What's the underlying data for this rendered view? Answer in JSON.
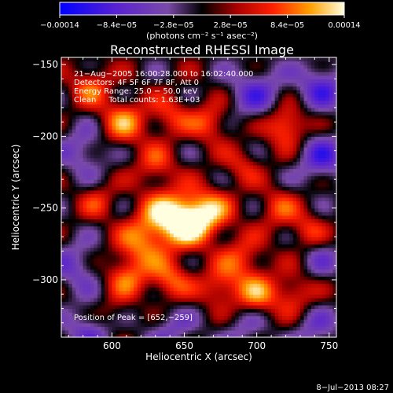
{
  "chart_data": {
    "type": "heatmap",
    "title": "Reconstructed RHESSI Image",
    "xlabel": "Heliocentric X (arcsec)",
    "ylabel": "Heliocentric Y (arcsec)",
    "xlim": [
      565,
      755
    ],
    "ylim": [
      -340,
      -145
    ],
    "x_ticks": [
      600,
      650,
      700,
      750
    ],
    "y_ticks": [
      -150,
      -200,
      -250,
      -300
    ],
    "x_tick_labels": [
      "600",
      "650",
      "700",
      "750"
    ],
    "y_tick_labels": [
      "−150",
      "−200",
      "−250",
      "−300"
    ],
    "colorbar": {
      "range": [
        -0.00014,
        0.00014
      ],
      "tick_values": [
        -0.00014,
        -8.4e-05,
        -2.8e-05,
        2.8e-05,
        8.4e-05,
        0.00014
      ],
      "tick_labels": [
        "−0.00014",
        "−8.4e−05",
        "−2.8e−05",
        "2.8e−05",
        "8.4e−05",
        "0.00014"
      ],
      "units_label": "(photons cm⁻² s⁻¹ asec⁻²)"
    },
    "annotations": [
      "21−Aug−2005 16:00:28.000 to 16:02:40.000",
      "Detectors: 4F 5F 6F 7F 8F, Att 0",
      "Energy Range: 25.0 − 50.0 keV",
      "Clean     Total counts: 1.63E+03"
    ],
    "peak_label": "Position of Peak = [652,−259]",
    "peak": [
      652,
      -259
    ],
    "footer_date": "8−Jul−2013 08:27",
    "blobs": [
      {
        "x": 652,
        "y": -259,
        "value": 0.00014,
        "sigma": 12
      },
      {
        "x": 635,
        "y": -255,
        "value": 9.5e-05,
        "sigma": 12
      },
      {
        "x": 668,
        "y": -252,
        "value": 8.5e-05,
        "sigma": 11
      },
      {
        "x": 620,
        "y": -275,
        "value": 8e-05,
        "sigma": 12
      },
      {
        "x": 640,
        "y": -300,
        "value": 8e-05,
        "sigma": 10
      },
      {
        "x": 610,
        "y": -298,
        "value": 7.5e-05,
        "sigma": 10
      },
      {
        "x": 690,
        "y": -285,
        "value": 6.5e-05,
        "sigma": 11
      },
      {
        "x": 700,
        "y": -310,
        "value": 8.5e-05,
        "sigma": 10
      },
      {
        "x": 725,
        "y": -310,
        "value": 6.5e-05,
        "sigma": 10
      },
      {
        "x": 675,
        "y": -305,
        "value": 7e-05,
        "sigma": 10
      },
      {
        "x": 715,
        "y": -250,
        "value": 6e-05,
        "sigma": 10
      },
      {
        "x": 585,
        "y": -165,
        "value": 7e-05,
        "sigma": 10
      },
      {
        "x": 608,
        "y": -190,
        "value": 9e-05,
        "sigma": 11
      },
      {
        "x": 640,
        "y": -185,
        "value": 6e-05,
        "sigma": 10
      },
      {
        "x": 668,
        "y": -190,
        "value": 7e-05,
        "sigma": 10
      },
      {
        "x": 720,
        "y": -192,
        "value": 0.0001,
        "sigma": 10
      },
      {
        "x": 735,
        "y": -265,
        "value": 5.5e-05,
        "sigma": 9
      },
      {
        "x": 590,
        "y": -245,
        "value": 5e-05,
        "sigma": 9
      },
      {
        "x": 600,
        "y": -325,
        "value": 4e-05,
        "sigma": 9
      },
      {
        "x": 690,
        "y": -220,
        "value": 5e-05,
        "sigma": 9
      },
      {
        "x": 630,
        "y": -220,
        "value": 6e-05,
        "sigma": 10
      },
      {
        "x": 700,
        "y": -170,
        "value": -7e-05,
        "sigma": 14
      },
      {
        "x": 745,
        "y": -165,
        "value": -8e-05,
        "sigma": 12
      },
      {
        "x": 745,
        "y": -215,
        "value": -8e-05,
        "sigma": 12
      },
      {
        "x": 580,
        "y": -210,
        "value": -6e-05,
        "sigma": 12
      },
      {
        "x": 575,
        "y": -290,
        "value": -6e-05,
        "sigma": 12
      },
      {
        "x": 585,
        "y": -335,
        "value": -7e-05,
        "sigma": 12
      },
      {
        "x": 640,
        "y": -335,
        "value": -5e-05,
        "sigma": 12
      },
      {
        "x": 740,
        "y": -335,
        "value": -5e-05,
        "sigma": 12
      },
      {
        "x": 745,
        "y": -285,
        "value": -4e-05,
        "sigma": 10
      },
      {
        "x": 690,
        "y": -335,
        "value": -4e-05,
        "sigma": 12
      }
    ]
  }
}
